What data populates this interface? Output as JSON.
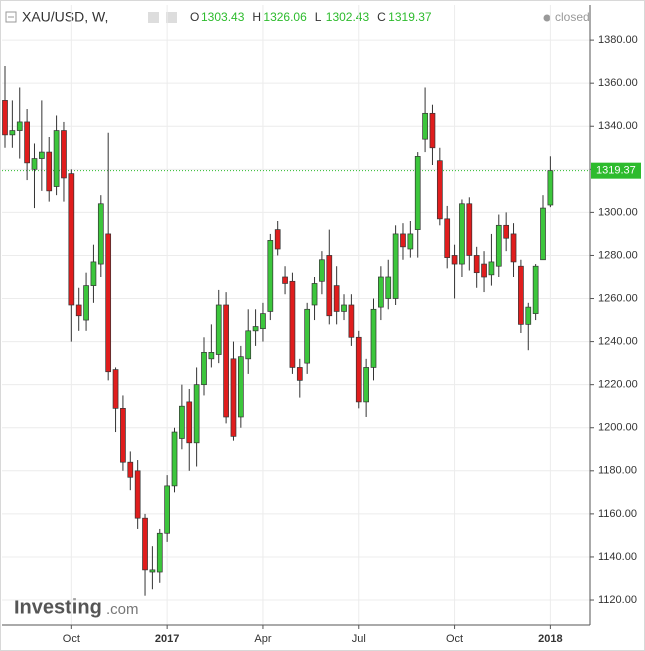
{
  "chart_data": {
    "type": "candlestick",
    "title": "XAU/USD, W,",
    "status": "closed",
    "header_labels": [
      "O",
      "H",
      "L",
      "C"
    ],
    "watermark": [
      "Investing",
      ".com"
    ],
    "categories": [
      null,
      null,
      null,
      null,
      null,
      null,
      null,
      null,
      null,
      "Oct",
      null,
      null,
      null,
      null,
      null,
      null,
      null,
      null,
      null,
      null,
      null,
      null,
      "2017",
      null,
      null,
      null,
      null,
      null,
      null,
      null,
      null,
      null,
      null,
      null,
      null,
      "Apr",
      null,
      null,
      null,
      null,
      null,
      null,
      null,
      null,
      null,
      null,
      null,
      null,
      "Jul",
      null,
      null,
      null,
      null,
      null,
      null,
      null,
      null,
      null,
      null,
      null,
      null,
      "Oct",
      null,
      null,
      null,
      null,
      null,
      null,
      null,
      null,
      null,
      null,
      null,
      null,
      "2018"
    ],
    "open": [
      1352,
      1336,
      1338,
      1342,
      1320,
      1325,
      1328,
      1312,
      1338,
      1318,
      1257,
      1250,
      1266,
      1276,
      1290,
      1227,
      1209,
      1184,
      1180,
      1158,
      1133,
      1133,
      1151,
      1173,
      1195,
      1212,
      1193,
      1220,
      1232,
      1234,
      1257,
      1232,
      1205,
      1232,
      1245,
      1246,
      1254,
      1292,
      1270,
      1268,
      1228,
      1230,
      1257,
      1268,
      1280,
      1266,
      1254,
      1257,
      1242,
      1212,
      1228,
      1256,
      1260,
      1260,
      1290,
      1283,
      1292,
      1334,
      1346,
      1324,
      1297,
      1280,
      1276,
      1304,
      1280,
      1276,
      1271,
      1275,
      1294,
      1290,
      1275,
      1248,
      1253,
      1278,
      1303.43
    ],
    "high": [
      1368,
      1352,
      1358,
      1348,
      1332,
      1352,
      1335,
      1345,
      1342,
      1320,
      1265,
      1272,
      1285,
      1308,
      1337,
      1228,
      1215,
      1189,
      1185,
      1160,
      1145,
      1153,
      1178,
      1200,
      1220,
      1218,
      1228,
      1242,
      1248,
      1264,
      1263,
      1240,
      1238,
      1255,
      1255,
      1258,
      1290,
      1296,
      1275,
      1272,
      1232,
      1258,
      1270,
      1282,
      1292,
      1275,
      1262,
      1262,
      1245,
      1232,
      1260,
      1275,
      1278,
      1294,
      1295,
      1296,
      1328,
      1358,
      1350,
      1330,
      1303,
      1285,
      1306,
      1307,
      1284,
      1282,
      1290,
      1299,
      1300,
      1295,
      1278,
      1258,
      1276,
      1308,
      1326.06
    ],
    "low": [
      1330,
      1330,
      1325,
      1315,
      1302,
      1310,
      1305,
      1308,
      1305,
      1240,
      1245,
      1245,
      1258,
      1270,
      1222,
      1198,
      1180,
      1171,
      1153,
      1122,
      1125,
      1128,
      1147,
      1170,
      1190,
      1180,
      1182,
      1215,
      1228,
      1230,
      1202,
      1194,
      1200,
      1225,
      1238,
      1240,
      1250,
      1280,
      1262,
      1225,
      1214,
      1225,
      1250,
      1262,
      1248,
      1248,
      1250,
      1238,
      1209,
      1205,
      1222,
      1250,
      1255,
      1257,
      1278,
      1279,
      1279,
      1328,
      1322,
      1294,
      1274,
      1260,
      1270,
      1273,
      1265,
      1263,
      1266,
      1270,
      1282,
      1270,
      1244,
      1236,
      1250,
      1278,
      1302.43
    ],
    "close": [
      1336,
      1338,
      1342,
      1323,
      1325,
      1328,
      1310,
      1338,
      1316,
      1257,
      1252,
      1266,
      1277,
      1304,
      1226,
      1209,
      1184,
      1177,
      1158,
      1134,
      1134,
      1151,
      1173,
      1198,
      1210,
      1193,
      1220,
      1235,
      1235,
      1257,
      1205,
      1196,
      1233,
      1245,
      1247,
      1253,
      1287,
      1283,
      1267,
      1228,
      1222,
      1255,
      1267,
      1278,
      1252,
      1254,
      1257,
      1242,
      1212,
      1228,
      1255,
      1270,
      1270,
      1290,
      1284,
      1290,
      1326,
      1346,
      1330,
      1297,
      1279,
      1276,
      1304,
      1280,
      1272,
      1270,
      1277,
      1294,
      1288,
      1277,
      1248,
      1256,
      1275,
      1302,
      1319.37
    ],
    "up_color": "#3cc63c",
    "down_color": "#e01d1d",
    "last_color": "#2dbb2d",
    "ylim": [
      1108.4,
      1396.3
    ],
    "yticks": [
      {
        "value": 1120,
        "label": "1120.00"
      },
      {
        "value": 1140,
        "label": "1140.00"
      },
      {
        "value": 1160,
        "label": "1160.00"
      },
      {
        "value": 1180,
        "label": "1180.00"
      },
      {
        "value": 1200,
        "label": "1200.00"
      },
      {
        "value": 1220,
        "label": "1220.00"
      },
      {
        "value": 1240,
        "label": "1240.00"
      },
      {
        "value": 1260,
        "label": "1260.00"
      },
      {
        "value": 1280,
        "label": "1280.00"
      },
      {
        "value": 1300,
        "label": "1300.00"
      },
      {
        "value": 1320,
        "label": "1320.00"
      },
      {
        "value": 1340,
        "label": "1340.00"
      },
      {
        "value": 1360,
        "label": "1360.00"
      },
      {
        "value": 1380,
        "label": "1380.00"
      }
    ],
    "grid": true
  }
}
